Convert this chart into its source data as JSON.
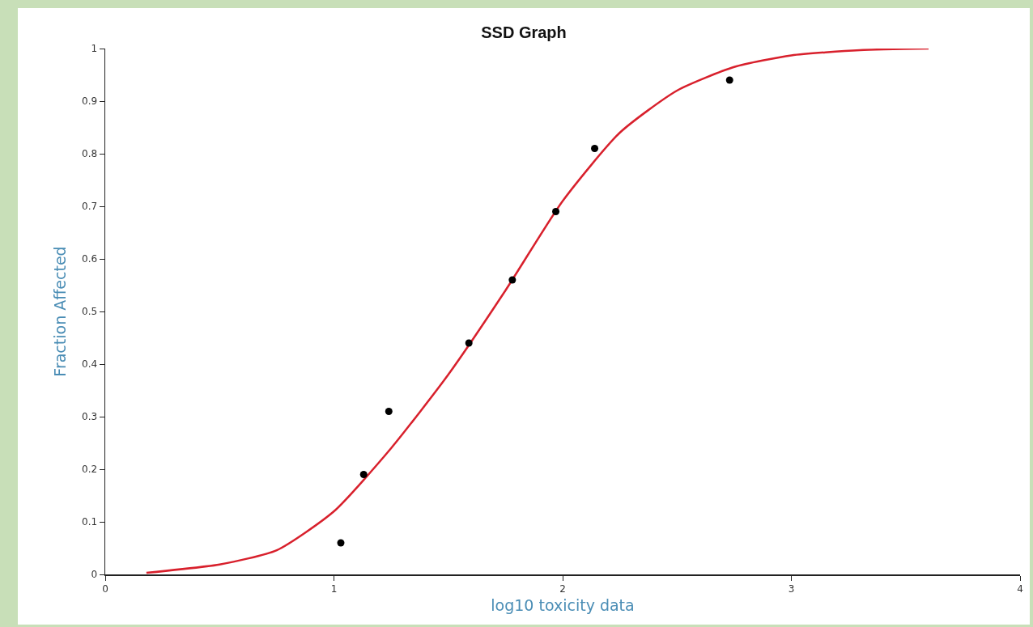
{
  "chart_data": {
    "type": "scatter",
    "title": "SSD Graph",
    "xlabel": "log10 toxicity data",
    "ylabel": "Fraction Affected",
    "xlim": [
      0,
      4
    ],
    "xticks": [
      0,
      1,
      2,
      3,
      4
    ],
    "ylim": [
      0,
      1
    ],
    "yticks": [
      0,
      0.1,
      0.2,
      0.3,
      0.4,
      0.5,
      0.6,
      0.7,
      0.8,
      0.9,
      1
    ],
    "grid": false,
    "series": [
      {
        "type": "line",
        "color": "#d8202c",
        "marker": "none",
        "line_style": "solid",
        "x": [
          0.18,
          0.5,
          0.75,
          1.0,
          1.25,
          1.5,
          1.75,
          2.0,
          2.25,
          2.5,
          2.75,
          3.0,
          3.3,
          3.6
        ],
        "values": [
          0.003,
          0.019,
          0.046,
          0.12,
          0.24,
          0.38,
          0.54,
          0.71,
          0.84,
          0.92,
          0.965,
          0.987,
          0.997,
          1.0
        ]
      },
      {
        "type": "scatter",
        "color": "#000000",
        "marker": "circle",
        "x": [
          1.03,
          1.13,
          1.24,
          1.59,
          1.78,
          1.97,
          2.14,
          2.73
        ],
        "values": [
          0.06,
          0.19,
          0.31,
          0.44,
          0.56,
          0.69,
          0.81,
          0.94
        ]
      }
    ]
  }
}
